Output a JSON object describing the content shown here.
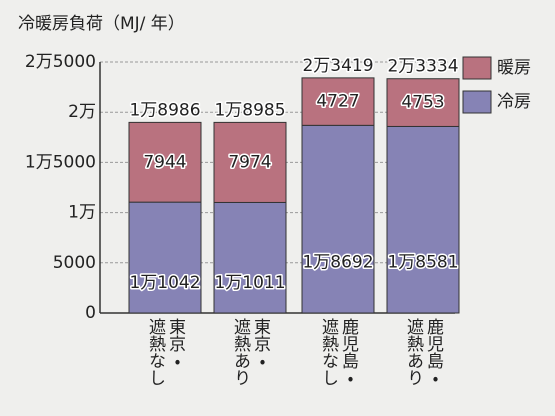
{
  "chart_data": {
    "type": "stacked_bar",
    "title": "冷暖房負荷（MJ/ 年）",
    "categories": [
      "東京・\n遮熱なし",
      "東京・\n遮熱あり",
      "鹿児島・\n遮熱なし",
      "鹿児島・\n遮熱あり"
    ],
    "series": [
      {
        "name": "冷房",
        "color": "#8683b5",
        "values": [
          11042,
          11011,
          18692,
          18581
        ],
        "value_labels": [
          "1万1042",
          "1万1011",
          "1万8692",
          "1万8581"
        ]
      },
      {
        "name": "暖房",
        "color": "#b9727f",
        "values": [
          7944,
          7974,
          4727,
          4753
        ]
      }
    ],
    "totals": [
      18986,
      18985,
      23419,
      23334
    ],
    "total_labels": [
      "1万8986",
      "1万8985",
      "2万3419",
      "2万3334"
    ],
    "ylim": [
      0,
      25000
    ],
    "yticks": [
      0,
      5000,
      {
        "value": 10000,
        "label": "1万"
      },
      {
        "value": 15000,
        "label": "1万5000"
      },
      {
        "value": 20000,
        "label": "2万"
      },
      {
        "value": 25000,
        "label": "2万5000"
      }
    ],
    "grid": true,
    "legend": "right"
  }
}
